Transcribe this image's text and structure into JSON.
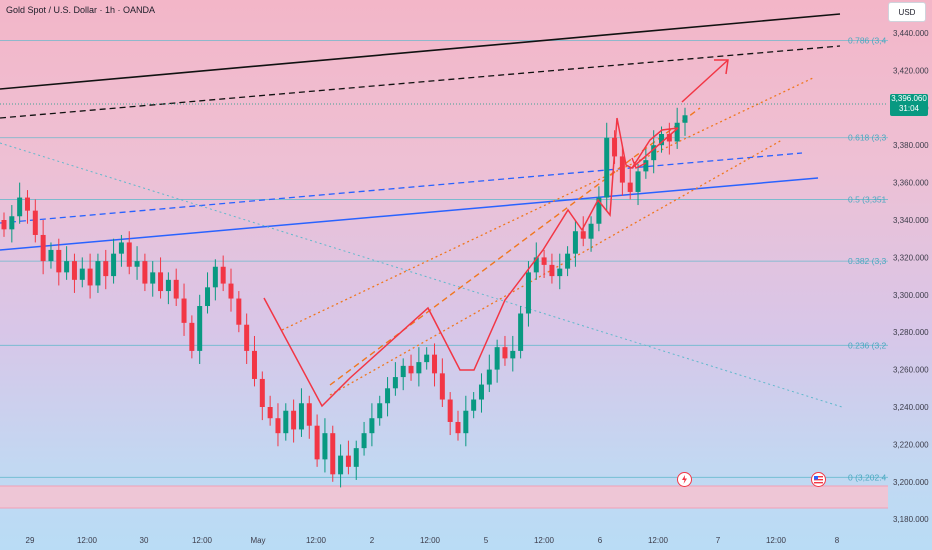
{
  "header": {
    "title": "Gold Spot / U.S. Dollar · 1h · OANDA",
    "currency_button": "USD"
  },
  "price_tag": {
    "price": "3,396.060",
    "countdown": "31:04",
    "color": "#089981"
  },
  "colors": {
    "up": "#089981",
    "down": "#f23645",
    "blue": "#2962ff",
    "fib": "#60b8cc",
    "orange": "#f0771e",
    "red": "#f23645"
  },
  "chart_data": {
    "type": "candlestick",
    "symbol": "Gold Spot / U.S. Dollar",
    "interval": "1h",
    "source": "OANDA",
    "ylim": [
      3150,
      3452
    ],
    "y_ticks": [
      "3,440.000",
      "3,420.000",
      "3,400.000",
      "3,380.000",
      "3,360.000",
      "3,340.000",
      "3,320.000",
      "3,300.000",
      "3,280.000",
      "3,260.000",
      "3,240.000",
      "3,220.000",
      "3,200.000",
      "3,180.000",
      "3,160.000"
    ],
    "x_ticks": [
      "29",
      "12:00",
      "30",
      "12:00",
      "May",
      "12:00",
      "2",
      "12:00",
      "5",
      "12:00",
      "6",
      "12:00",
      "7",
      "12:00",
      "8"
    ],
    "fib_levels": [
      {
        "ratio": "0.618",
        "label": "0.618 (3,3",
        "price": 3384
      },
      {
        "ratio": "0.5",
        "label": "0.5 (3,351",
        "price": 3351
      },
      {
        "ratio": "0.382",
        "label": "0.382 (3,3",
        "price": 3318
      },
      {
        "ratio": "0.236",
        "label": "0.236 (3,2",
        "price": 3273
      },
      {
        "ratio": "0",
        "label": "0 (3,202.4",
        "price": 3202.4
      },
      {
        "ratio": "0.786",
        "label": "0.786 (3,4",
        "price": 3436
      }
    ],
    "candles_close": [
      3335,
      3342,
      3352,
      3345,
      3332,
      3318,
      3324,
      3312,
      3318,
      3308,
      3314,
      3305,
      3318,
      3310,
      3322,
      3328,
      3315,
      3318,
      3306,
      3312,
      3302,
      3308,
      3298,
      3285,
      3270,
      3294,
      3304,
      3315,
      3306,
      3298,
      3284,
      3270,
      3255,
      3240,
      3234,
      3226,
      3238,
      3228,
      3242,
      3230,
      3212,
      3226,
      3204,
      3214,
      3208,
      3218,
      3226,
      3234,
      3242,
      3250,
      3256,
      3262,
      3258,
      3264,
      3268,
      3258,
      3244,
      3232,
      3226,
      3238,
      3244,
      3252,
      3260,
      3272,
      3266,
      3270,
      3290,
      3312,
      3320,
      3316,
      3310,
      3314,
      3322,
      3334,
      3330,
      3338,
      3352,
      3384,
      3374,
      3360,
      3355,
      3366,
      3372,
      3380,
      3386,
      3382,
      3392,
      3396
    ]
  },
  "events": [
    "flash-event-icon",
    "us-flag-event-icon"
  ]
}
